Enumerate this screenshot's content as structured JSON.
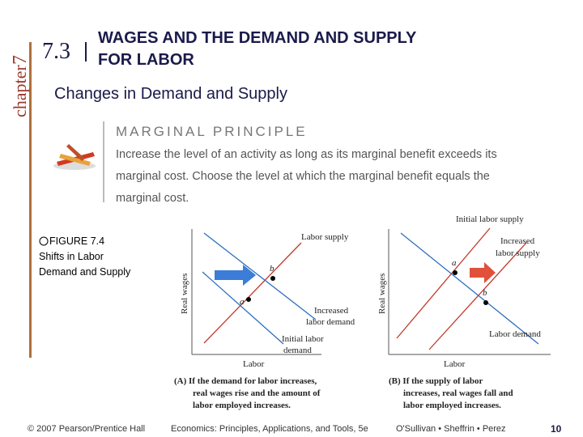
{
  "sidebar": {
    "chapter": "chapter",
    "number": "7"
  },
  "header": {
    "section": "7.3",
    "title_lines": [
      "WAGES AND THE DEMAND AND SUPPLY",
      "FOR LABOR"
    ],
    "subtitle": "Changes in Demand and Supply"
  },
  "principle": {
    "heading": "MARGINAL PRINCIPLE",
    "lines": [
      "Increase the level of an activity as long as its marginal benefit exceeds its",
      "marginal cost. Choose the level at which the marginal benefit equals the",
      "marginal cost."
    ]
  },
  "figure": {
    "label": "FIGURE 7.4",
    "caption_lines": [
      "Shifts in Labor",
      "Demand and Supply"
    ]
  },
  "panels": [
    {
      "y_label": "Real wages",
      "x_label": "Labor",
      "supply": "Labor supply",
      "new_demand": [
        "Increased",
        "labor demand"
      ],
      "old_demand": [
        "Initial labor",
        "demand"
      ],
      "point_a": "a",
      "point_b": "b",
      "caption_lines": [
        "(A) If the demand for labor increases,",
        "real wages rise and the amount of",
        "labor employed increases."
      ]
    },
    {
      "y_label": "Real wages",
      "x_label": "Labor",
      "old_supply": "Initial labor supply",
      "new_supply": [
        "Increased",
        "labor supply"
      ],
      "demand": "Labor demand",
      "point_a": "a",
      "point_b": "b",
      "caption_lines": [
        "(B) If the supply of labor",
        "increases, real wages fall and",
        "labor employed increases."
      ]
    }
  ],
  "footer": {
    "credit": "© 2007 Pearson/Prentice Hall",
    "book": "Economics: Principles, Applications, and Tools, 5e",
    "authors": "O'Sullivan • Sheffrin • Perez",
    "page": "10"
  }
}
